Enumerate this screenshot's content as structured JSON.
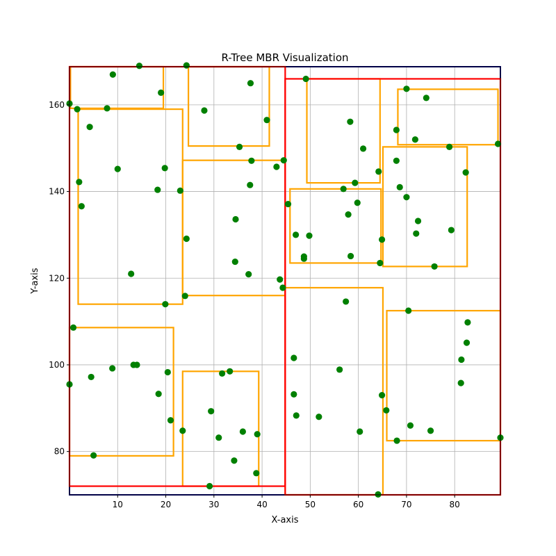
{
  "chart_data": {
    "type": "scatter",
    "title": "R-Tree MBR Visualization",
    "xlabel": "X-axis",
    "ylabel": "Y-axis",
    "xlim": [
      0,
      89.5
    ],
    "ylim": [
      70,
      168.8
    ],
    "xticks": [
      10,
      20,
      30,
      40,
      50,
      60,
      70,
      80
    ],
    "yticks": [
      80,
      100,
      120,
      140,
      160
    ],
    "grid": true,
    "legend": "none",
    "colors": {
      "points": "#008000",
      "leaf_mbr": "#FFA500",
      "inner_mbr": "#FF0000",
      "root_mbr": "#00008B",
      "grid": "#b0b0b0"
    },
    "root_mbr": [
      0,
      70,
      89.5,
      168.8
    ],
    "inner_mbrs": [
      [
        0,
        72,
        44.8,
        168.8
      ],
      [
        44.8,
        70,
        89.5,
        166
      ]
    ],
    "leaf_mbrs": [
      [
        0.2,
        159.2,
        19.5,
        168.8
      ],
      [
        24.7,
        150.5,
        41.5,
        168.8
      ],
      [
        1.8,
        114,
        23.5,
        159
      ],
      [
        23.5,
        116,
        44.8,
        147.2
      ],
      [
        0,
        79,
        21.6,
        108.6
      ],
      [
        23.5,
        72,
        39.3,
        98.5
      ],
      [
        49.3,
        142,
        64.5,
        166
      ],
      [
        68.2,
        150.8,
        89,
        163.6
      ],
      [
        45.8,
        123.5,
        64.7,
        140.6
      ],
      [
        65.1,
        122.7,
        82.6,
        150.3
      ],
      [
        44.8,
        70,
        65.1,
        117.8
      ],
      [
        65.9,
        82.5,
        89.5,
        112.5
      ]
    ],
    "points": [
      [
        0,
        160.3
      ],
      [
        1.6,
        159
      ],
      [
        4.2,
        154.9
      ],
      [
        7.8,
        159.2
      ],
      [
        9,
        167
      ],
      [
        14.5,
        169
      ],
      [
        19,
        162.8
      ],
      [
        24.3,
        169.1
      ],
      [
        28,
        158.7
      ],
      [
        37.6,
        165
      ],
      [
        41,
        156.5
      ],
      [
        10,
        145.2
      ],
      [
        2,
        142.2
      ],
      [
        2.5,
        136.6
      ],
      [
        18.3,
        140.4
      ],
      [
        19.8,
        145.4
      ],
      [
        23,
        140.2
      ],
      [
        12.8,
        121
      ],
      [
        19.9,
        114
      ],
      [
        24,
        115.9
      ],
      [
        24.3,
        129.1
      ],
      [
        34.5,
        133.6
      ],
      [
        34.4,
        123.8
      ],
      [
        37.2,
        120.9
      ],
      [
        37.5,
        141.5
      ],
      [
        37.8,
        147.1
      ],
      [
        35.3,
        150.3
      ],
      [
        43,
        145.7
      ],
      [
        44.5,
        147.2
      ],
      [
        43.7,
        119.7
      ],
      [
        44.3,
        117.8
      ],
      [
        0.8,
        108.6
      ],
      [
        0,
        95.5
      ],
      [
        4.5,
        97.2
      ],
      [
        8.9,
        99.2
      ],
      [
        13.3,
        100
      ],
      [
        14,
        100
      ],
      [
        18.5,
        93.3
      ],
      [
        20.4,
        98.3
      ],
      [
        21,
        87.2
      ],
      [
        23.5,
        84.8
      ],
      [
        5,
        79.1
      ],
      [
        29.4,
        89.3
      ],
      [
        31.7,
        98
      ],
      [
        33.3,
        98.5
      ],
      [
        31,
        83.2
      ],
      [
        36,
        84.6
      ],
      [
        39,
        84
      ],
      [
        34.2,
        77.9
      ],
      [
        38.8,
        75
      ],
      [
        29.1,
        72
      ],
      [
        49.1,
        166
      ],
      [
        58.3,
        156.1
      ],
      [
        61,
        149.9
      ],
      [
        64.2,
        144.6
      ],
      [
        56.9,
        140.6
      ],
      [
        59.3,
        142
      ],
      [
        59.8,
        137.4
      ],
      [
        57.9,
        134.7
      ],
      [
        45.4,
        137.1
      ],
      [
        47,
        130
      ],
      [
        49.8,
        129.8
      ],
      [
        48.7,
        125
      ],
      [
        48.7,
        124.5
      ],
      [
        58.4,
        125.1
      ],
      [
        64.5,
        123.5
      ],
      [
        64.9,
        128.9
      ],
      [
        70,
        163.7
      ],
      [
        74.1,
        161.6
      ],
      [
        67.9,
        154.2
      ],
      [
        71.8,
        152
      ],
      [
        78.9,
        150.3
      ],
      [
        89,
        151
      ],
      [
        67.9,
        147.1
      ],
      [
        82.3,
        144.4
      ],
      [
        68.6,
        141
      ],
      [
        70,
        138.7
      ],
      [
        72.4,
        133.2
      ],
      [
        72,
        130.3
      ],
      [
        79.3,
        131.1
      ],
      [
        75.8,
        122.7
      ],
      [
        57.4,
        114.6
      ],
      [
        70.4,
        112.5
      ],
      [
        82.7,
        109.8
      ],
      [
        46.6,
        101.6
      ],
      [
        82.5,
        105.1
      ],
      [
        81.4,
        101.2
      ],
      [
        56.1,
        98.9
      ],
      [
        81.3,
        95.8
      ],
      [
        46.6,
        93.2
      ],
      [
        64.9,
        93
      ],
      [
        65.8,
        89.5
      ],
      [
        47.1,
        88.3
      ],
      [
        51.8,
        88
      ],
      [
        70.8,
        86
      ],
      [
        60.3,
        84.6
      ],
      [
        75,
        84.8
      ],
      [
        68,
        82.5
      ],
      [
        89.5,
        83.2
      ],
      [
        64.1,
        70.1
      ]
    ]
  }
}
